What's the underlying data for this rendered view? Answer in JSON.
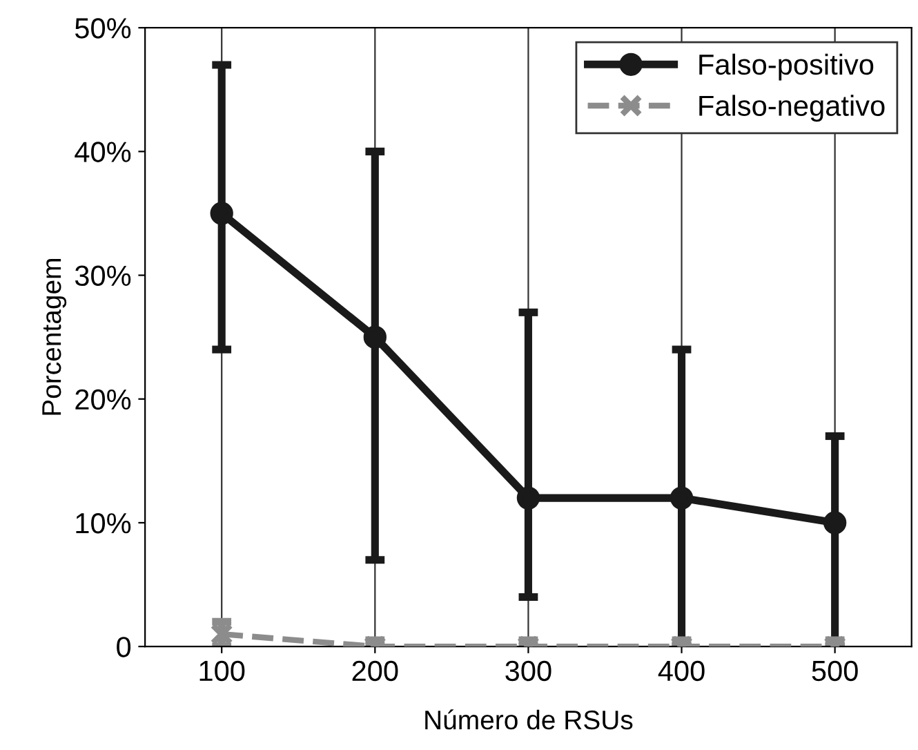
{
  "chart_data": {
    "type": "line",
    "xlabel": "Número de RSUs",
    "ylabel": "Porcentagem",
    "x": [
      100,
      200,
      300,
      400,
      500
    ],
    "xlim": [
      50,
      550
    ],
    "xticks": [
      100,
      200,
      300,
      400,
      500
    ],
    "ylim": [
      0,
      50
    ],
    "yticks": [
      {
        "value": 0,
        "label": "0"
      },
      {
        "value": 10,
        "label": "10%"
      },
      {
        "value": 20,
        "label": "20%"
      },
      {
        "value": 30,
        "label": "30%"
      },
      {
        "value": 40,
        "label": "40%"
      },
      {
        "value": 50,
        "label": "50%"
      }
    ],
    "grid": "x",
    "legend": "top right",
    "series": [
      {
        "name": "Falso-positivo",
        "color": "#1a1a1a",
        "values": [
          35,
          25,
          12,
          12,
          10
        ],
        "errors": [
          [
            24,
            47
          ],
          [
            7,
            40
          ],
          [
            4,
            27
          ],
          [
            0,
            24
          ],
          [
            0,
            17
          ]
        ],
        "marker": "circle",
        "line_style": "solid"
      },
      {
        "name": "Falso-negativo",
        "color": "#8c8c8c",
        "values": [
          1,
          0,
          0,
          0,
          0
        ],
        "errors": [
          [
            0,
            2
          ],
          [
            0,
            0.5
          ],
          [
            0,
            0.5
          ],
          [
            0,
            0.5
          ],
          [
            0,
            0.5
          ]
        ],
        "marker": "cross",
        "line_style": "dashed"
      }
    ]
  }
}
